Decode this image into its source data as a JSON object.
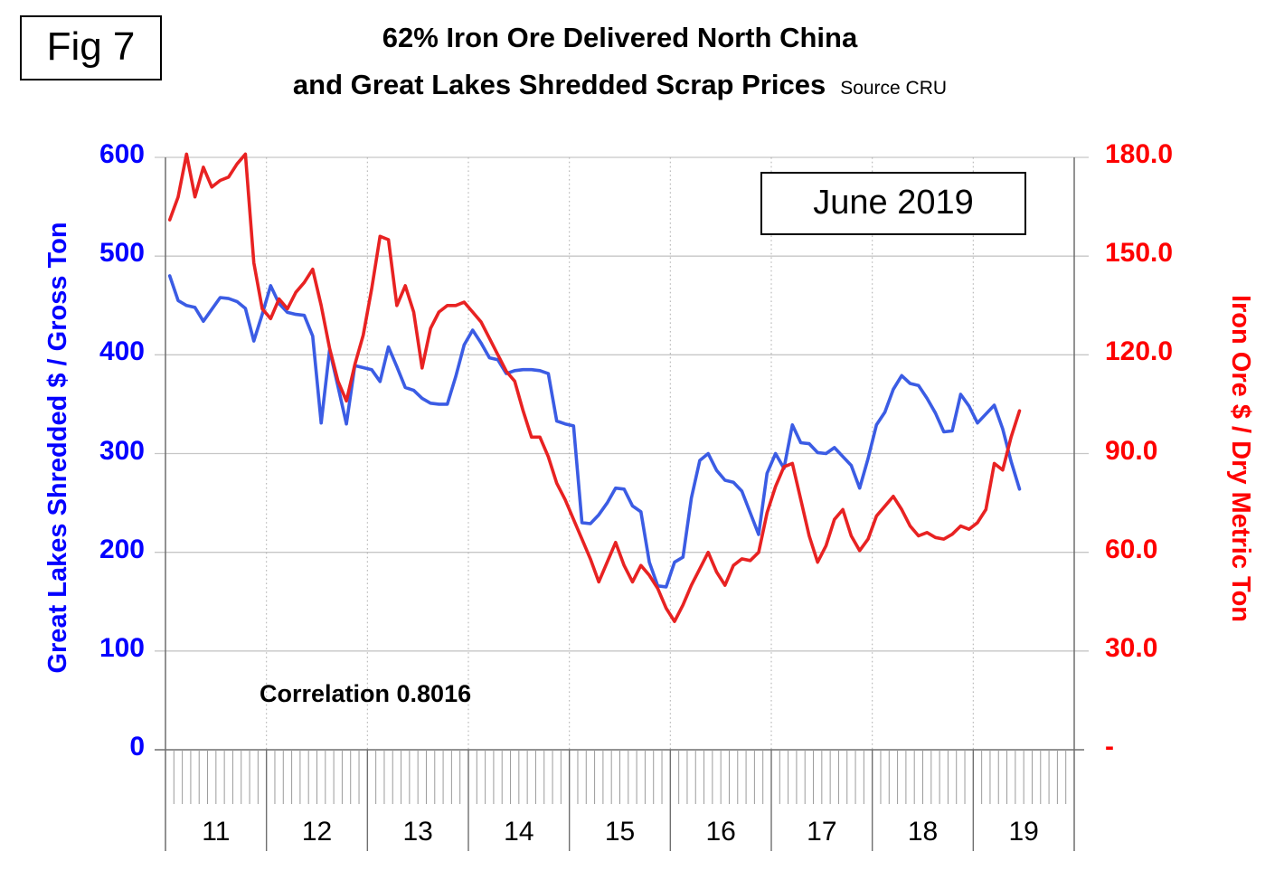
{
  "figure_label": "Fig 7",
  "title": {
    "line1": "62% Iron Ore Delivered North China",
    "line2": "and Great Lakes Shredded Scrap Prices",
    "source_note": "Source CRU"
  },
  "annotation_box_label": "June 2019",
  "correlation_label": "Correlation 0.8016",
  "colors": {
    "scrap_line": "#3b5ce4",
    "ore_line": "#e82222",
    "left_axis_text": "#0400ff",
    "right_axis_text": "#fe0000",
    "gridline": "#c6c6c6",
    "dotted_year_line": "#b5b5b5",
    "axis_line": "#6f6f6f",
    "month_tick": "#9b9b9b",
    "text": "#000000"
  },
  "chart_data": {
    "type": "line",
    "title": "62% Iron Ore Delivered North China and Great Lakes Shredded Scrap Prices",
    "frequency": "monthly",
    "x_start": "2011-01",
    "x_end": "2019-06",
    "x_years": [
      "11",
      "12",
      "13",
      "14",
      "15",
      "16",
      "17",
      "18",
      "19"
    ],
    "months_per_year": 12,
    "grid": {
      "horizontal": true,
      "vertical": "dotted year boundaries",
      "minor_x_ticks": "monthly comb below axis"
    },
    "left_axis": {
      "label": "Great Lakes Shredded $ / Gross Ton",
      "min": 0,
      "max": 600,
      "tick_labels": [
        "600",
        "500",
        "400",
        "300",
        "200",
        "100",
        "0"
      ]
    },
    "right_axis": {
      "label": "Iron Ore $ / Dry Metric Ton",
      "min": 0,
      "max": 180,
      "tick_labels": [
        "180.0",
        "150.0",
        "120.0",
        "90.0",
        "60.0",
        "30.0",
        "-"
      ]
    },
    "annotations": [
      {
        "text": "June 2019",
        "type": "boxed-label"
      },
      {
        "text": "Correlation 0.8016",
        "type": "text-label"
      }
    ],
    "series": [
      {
        "name": "Great Lakes Shredded $ / Gross Ton",
        "axis": "left",
        "color": "#3b5ce4",
        "values": [
          480,
          455,
          450,
          448,
          434,
          446,
          458,
          457,
          454,
          447,
          414,
          441,
          470,
          452,
          443,
          441,
          440,
          419,
          331,
          405,
          368,
          330,
          389,
          387,
          385,
          373,
          408,
          388,
          367,
          364,
          356,
          351,
          350,
          350,
          378,
          410,
          425,
          412,
          397,
          395,
          381,
          384,
          385,
          385,
          384,
          381,
          333,
          330,
          328,
          230,
          229,
          238,
          250,
          265,
          264,
          247,
          241,
          190,
          166,
          165,
          190,
          195,
          255,
          293,
          300,
          283,
          273,
          271,
          262,
          240,
          218,
          280,
          300,
          285,
          329,
          311,
          310,
          301,
          300,
          306,
          297,
          288,
          265,
          295,
          329,
          342,
          365,
          379,
          371,
          369,
          356,
          341,
          322,
          323,
          360,
          348,
          331,
          340,
          349,
          325,
          292,
          264
        ]
      },
      {
        "name": "62% Iron Ore Delivered North China $ / Dry Metric Ton",
        "axis": "right",
        "color": "#e82222",
        "values": [
          161,
          168,
          181,
          168,
          177,
          171,
          173,
          174,
          178,
          181,
          148,
          134,
          131,
          137,
          134,
          139,
          142,
          146,
          135,
          122,
          112,
          106,
          117,
          126,
          140,
          156,
          155,
          135,
          141,
          133,
          116,
          128,
          133,
          135,
          135,
          136,
          133,
          130,
          125,
          120,
          115,
          112,
          103,
          95,
          95,
          89,
          81,
          76,
          70,
          64,
          58,
          51,
          57,
          63,
          56,
          51,
          56,
          53,
          49,
          43,
          39,
          44,
          50,
          55,
          60,
          54,
          50,
          56,
          58,
          57.5,
          60,
          72,
          80,
          86,
          87,
          76,
          65,
          57,
          62,
          70,
          73,
          65,
          60.5,
          64,
          71,
          74,
          77,
          73,
          68,
          65,
          66,
          64.5,
          64,
          65.5,
          68,
          67,
          69,
          73,
          87,
          85,
          95,
          103
        ]
      }
    ]
  }
}
